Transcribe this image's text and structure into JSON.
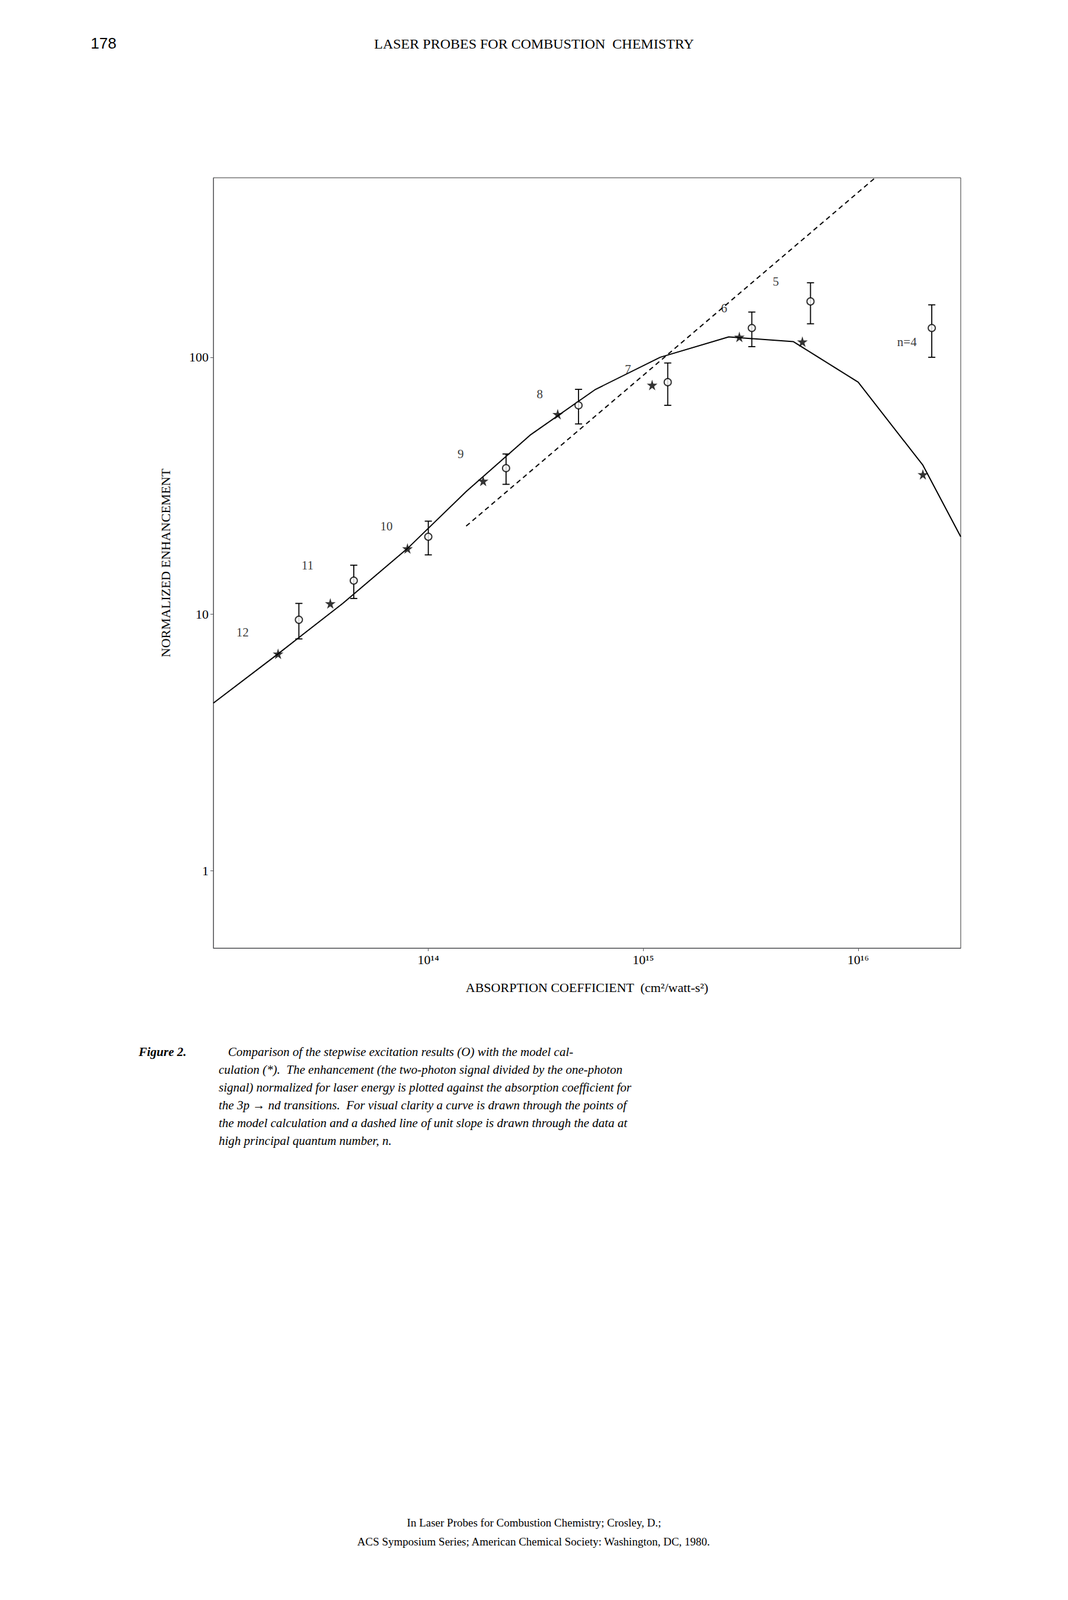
{
  "chart_data": {
    "type": "line",
    "page_number": "178",
    "header": "LASER PROBES FOR COMBUSTION  CHEMISTRY",
    "xlabel": "ABSORPTION COEFFICIENT  (cm²/watt-s²)",
    "ylabel": "NORMALIZED ENHANCEMENT",
    "log": true,
    "xlim": [
      10000000000000.0,
      3e+16
    ],
    "ylim": [
      0.5,
      500
    ],
    "xticks": [
      {
        "value": 100000000000000.0,
        "label": "10¹⁴"
      },
      {
        "value": 1000000000000000.0,
        "label": "10¹⁵"
      },
      {
        "value": 1e+16,
        "label": "10¹⁶"
      }
    ],
    "yticks": [
      1,
      10,
      100
    ],
    "grid": false,
    "series": [
      {
        "type": "line",
        "line_style": "solid",
        "color": "#000000",
        "x": [
          10000000000000.0,
          20000000000000.0,
          40000000000000.0,
          80000000000000.0,
          150000000000000.0,
          300000000000000.0,
          600000000000000.0,
          1200000000000000.0,
          2500000000000000.0,
          5000000000000000.0,
          1e+16,
          2e+16,
          3e+16
        ],
        "values": [
          4.5,
          7.0,
          11.0,
          18.0,
          30.0,
          50.0,
          75.0,
          100.0,
          120.0,
          115.0,
          80.0,
          38.0,
          20.0
        ]
      },
      {
        "type": "line",
        "line_style": "dashed",
        "color": "#000000",
        "x": [
          150000000000000.0,
          1.2e+16
        ],
        "values": [
          22.0,
          500.0
        ]
      },
      {
        "type": "scatter",
        "marker": "circle",
        "color": "#000000",
        "x": [
          25000000000000.0,
          45000000000000.0,
          100000000000000.0,
          230000000000000.0,
          500000000000000.0,
          1300000000000000.0,
          3200000000000000.0,
          6000000000000000.0,
          2.2e+16
        ],
        "values": [
          9.5,
          13.5,
          20,
          37,
          65,
          80,
          130,
          165,
          130
        ],
        "y_err_lo": [
          1.5,
          2.0,
          3.0,
          5.0,
          10.0,
          15.0,
          20.0,
          30.0,
          30.0
        ],
        "y_err_hi": [
          1.5,
          2.0,
          3.0,
          5.0,
          10.0,
          15.0,
          20.0,
          30.0,
          30.0
        ]
      },
      {
        "type": "scatter",
        "marker": "star",
        "color": "#000000",
        "x": [
          20000000000000.0,
          35000000000000.0,
          80000000000000.0,
          180000000000000.0,
          400000000000000.0,
          1100000000000000.0,
          2800000000000000.0,
          5500000000000000.0,
          2e+16
        ],
        "values": [
          7.0,
          11.0,
          18.0,
          33.0,
          60.0,
          78.0,
          120.0,
          115.0,
          35.0
        ]
      }
    ],
    "annotations": [
      {
        "text": "12",
        "x": 15000000000000.0,
        "y": 8.5
      },
      {
        "text": "11",
        "x": 30000000000000.0,
        "y": 15.5
      },
      {
        "text": "10",
        "x": 70000000000000.0,
        "y": 22.0
      },
      {
        "text": "9",
        "x": 150000000000000.0,
        "y": 42.0
      },
      {
        "text": "8",
        "x": 350000000000000.0,
        "y": 72.0
      },
      {
        "text": "7",
        "x": 900000000000000.0,
        "y": 90.0
      },
      {
        "text": "6",
        "x": 2300000000000000.0,
        "y": 145.0
      },
      {
        "text": "5",
        "x": 4000000000000000.0,
        "y": 185.0
      },
      {
        "text": "n=4",
        "x": 1.5e+16,
        "y": 115.0
      }
    ],
    "caption_bold": "Figure 2.",
    "caption": "   Comparison of the stepwise excitation results (O) with the model cal-\nculation (*).  The enhancement (the two-photon signal divided by the one-photon\nsignal) normalized for laser energy is plotted against the absorption coefficient for\nthe 3p → nd transitions.  For visual clarity a curve is drawn through the points of\nthe model calculation and a dashed line of unit slope is drawn through the data at\nhigh principal quantum number, n.",
    "footer": [
      "In Laser Probes for Combustion Chemistry; Crosley, D.;",
      "ACS Symposium Series; American Chemical Society: Washington, DC, 1980."
    ]
  }
}
